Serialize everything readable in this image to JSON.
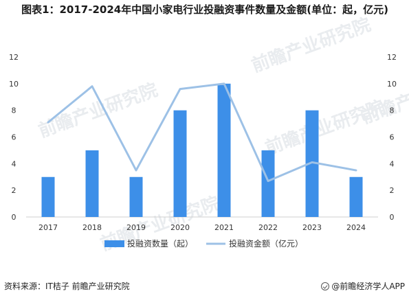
{
  "title": "图表1：2017-2024年中国小家电行业投融资事件数量及金额(单位：起，亿元)",
  "source": "资料来源：IT桔子 前瞻产业研究院",
  "brand": "@前瞻经济学人APP",
  "watermark": "前瞻产业研究院",
  "chart_data": {
    "type": "bar",
    "categories": [
      "2017",
      "2018",
      "2019",
      "2020",
      "2021",
      "2022",
      "2023",
      "2024"
    ],
    "series": [
      {
        "name": "投融资数量（起）",
        "type": "bar",
        "axis": "left",
        "values": [
          3,
          5,
          3,
          8,
          10,
          5,
          8,
          3
        ],
        "color": "#3d8fe8"
      },
      {
        "name": "投融资金额（亿元）",
        "type": "line",
        "axis": "right",
        "values": [
          7.1,
          9.8,
          3.5,
          9.6,
          10.0,
          2.7,
          4.1,
          3.5
        ],
        "color": "#9dc1e6"
      }
    ],
    "y_left": {
      "min": 0,
      "max": 12,
      "ticks": [
        0,
        2,
        4,
        6,
        8,
        10,
        12
      ]
    },
    "y_right": {
      "min": 0,
      "max": 12,
      "ticks": [
        0,
        2,
        4,
        6,
        8,
        10,
        12
      ]
    },
    "grid": false,
    "legend_position": "bottom"
  }
}
